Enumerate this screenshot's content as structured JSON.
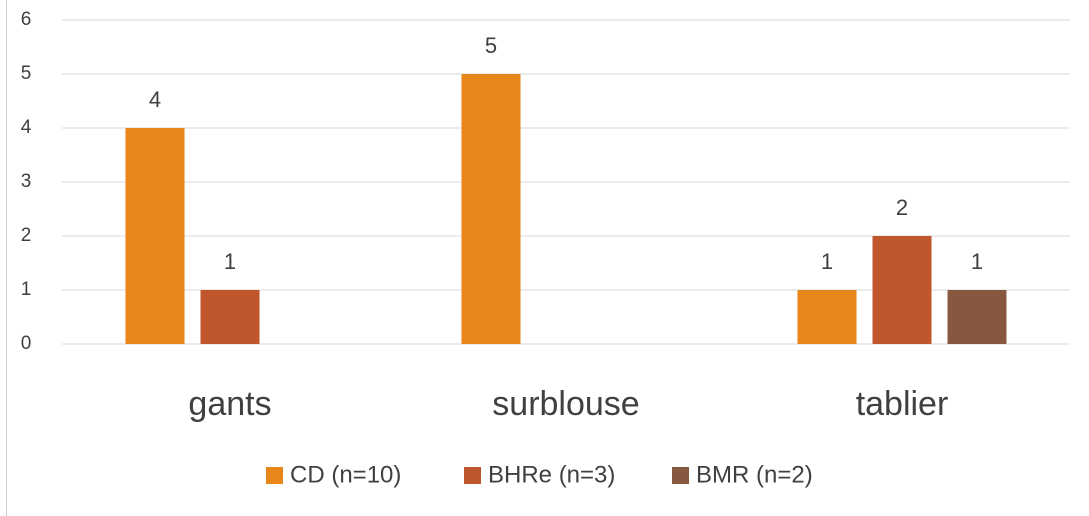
{
  "chart_data": {
    "type": "bar",
    "categories": [
      "gants",
      "surblouse",
      "tablier"
    ],
    "series": [
      {
        "name": "CD (n=10)",
        "color": "#e8861a",
        "values": [
          4,
          5,
          1
        ]
      },
      {
        "name": "BHRe (n=3)",
        "color": "#c0572c",
        "values": [
          1,
          null,
          2
        ]
      },
      {
        "name": "BMR (n=2)",
        "color": "#875840",
        "values": [
          null,
          null,
          1
        ]
      }
    ],
    "ylim": [
      0,
      6
    ],
    "yticks": [
      0,
      1,
      2,
      3,
      4,
      5,
      6
    ],
    "grid": true,
    "legend": "bottom"
  }
}
